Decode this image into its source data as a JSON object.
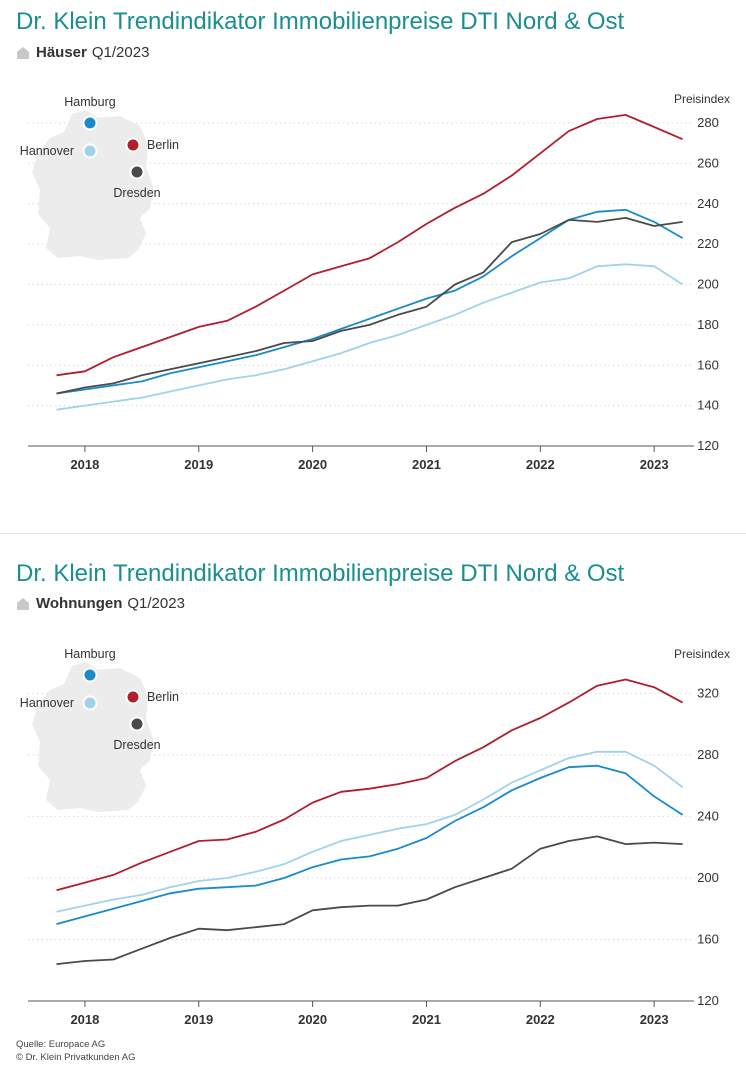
{
  "charts": [
    {
      "title": "Dr. Klein Trendindikator Immobilienpreise DTI Nord & Ost",
      "subtitle_bold": "Häuser",
      "subtitle_rest": "Q1/2023"
    },
    {
      "title": "Dr. Klein Trendindikator Immobilienpreise DTI Nord & Ost",
      "subtitle_bold": "Wohnungen",
      "subtitle_rest": "Q1/2023"
    }
  ],
  "source_lines": [
    "Quelle: Europace AG",
    "© Dr. Klein Privatkunden AG"
  ],
  "colors": {
    "title": "#1a8f8f",
    "hamburg": "#1a8acb",
    "hannover": "#9fd3ea",
    "berlin": "#b01f2e",
    "dresden": "#4a4a4a",
    "map": "#ececec"
  },
  "chart_data": [
    {
      "type": "line",
      "title": "Dr. Klein Trendindikator Immobilienpreise DTI Nord & Ost",
      "subtitle": "Häuser Q1/2023",
      "ylabel": "Preisindex",
      "xlim": [
        2017.5,
        2023.35
      ],
      "ylim": [
        120,
        280
      ],
      "yticks": [
        120,
        140,
        160,
        180,
        200,
        220,
        240,
        260,
        280
      ],
      "xticks": [
        2018,
        2019,
        2020,
        2021,
        2022,
        2023
      ],
      "xtick_labels": [
        "2018",
        "2019",
        "2020",
        "2021",
        "2022",
        "2023"
      ],
      "grid": "horizontal-dotted",
      "legend": "map-inset-top-left",
      "x": [
        2017.75,
        2018.0,
        2018.25,
        2018.5,
        2018.75,
        2019.0,
        2019.25,
        2019.5,
        2019.75,
        2020.0,
        2020.25,
        2020.5,
        2020.75,
        2021.0,
        2021.25,
        2021.5,
        2021.75,
        2022.0,
        2022.25,
        2022.5,
        2022.75,
        2023.0,
        2023.25
      ],
      "series": [
        {
          "name": "Berlin",
          "color": "#b01f2e",
          "values": [
            155,
            157,
            164,
            169,
            174,
            179,
            182,
            189,
            197,
            205,
            209,
            213,
            221,
            230,
            238,
            245,
            254,
            265,
            276,
            282,
            284,
            278,
            272
          ]
        },
        {
          "name": "Hamburg",
          "color": "#1a8acb",
          "values": [
            146,
            148,
            150,
            152,
            156,
            159,
            162,
            165,
            169,
            173,
            178,
            183,
            188,
            193,
            197,
            204,
            214,
            223,
            232,
            236,
            237,
            231,
            223
          ]
        },
        {
          "name": "Hannover",
          "color": "#9fd3ea",
          "values": [
            138,
            140,
            142,
            144,
            147,
            150,
            153,
            155,
            158,
            162,
            166,
            171,
            175,
            180,
            185,
            191,
            196,
            201,
            203,
            209,
            210,
            209,
            200
          ]
        },
        {
          "name": "Dresden",
          "color": "#4a4a4a",
          "values": [
            146,
            149,
            151,
            155,
            158,
            161,
            164,
            167,
            171,
            172,
            177,
            180,
            185,
            189,
            200,
            206,
            221,
            225,
            232,
            231,
            233,
            229,
            231
          ]
        }
      ],
      "map_labels": [
        {
          "name": "Hamburg",
          "color": "#1a8acb"
        },
        {
          "name": "Hannover",
          "color": "#9fd3ea"
        },
        {
          "name": "Berlin",
          "color": "#b01f2e"
        },
        {
          "name": "Dresden",
          "color": "#4a4a4a"
        }
      ]
    },
    {
      "type": "line",
      "title": "Dr. Klein Trendindikator Immobilienpreise DTI Nord & Ost",
      "subtitle": "Wohnungen Q1/2023",
      "ylabel": "Preisindex",
      "xlim": [
        2017.5,
        2023.35
      ],
      "ylim": [
        120,
        330
      ],
      "yticks": [
        120,
        160,
        200,
        240,
        280,
        320
      ],
      "xticks": [
        2018,
        2019,
        2020,
        2021,
        2022,
        2023
      ],
      "xtick_labels": [
        "2018",
        "2019",
        "2020",
        "2021",
        "2022",
        "2023"
      ],
      "grid": "horizontal-dotted",
      "legend": "map-inset-top-left",
      "x": [
        2017.75,
        2018.0,
        2018.25,
        2018.5,
        2018.75,
        2019.0,
        2019.25,
        2019.5,
        2019.75,
        2020.0,
        2020.25,
        2020.5,
        2020.75,
        2021.0,
        2021.25,
        2021.5,
        2021.75,
        2022.0,
        2022.25,
        2022.5,
        2022.75,
        2023.0,
        2023.25
      ],
      "series": [
        {
          "name": "Berlin",
          "color": "#b01f2e",
          "values": [
            192,
            197,
            202,
            210,
            217,
            224,
            225,
            230,
            238,
            249,
            256,
            258,
            261,
            265,
            276,
            285,
            296,
            304,
            314,
            325,
            329,
            324,
            314
          ]
        },
        {
          "name": "Hamburg",
          "color": "#1a8acb",
          "values": [
            170,
            175,
            180,
            185,
            190,
            193,
            194,
            195,
            200,
            207,
            212,
            214,
            219,
            226,
            237,
            246,
            257,
            265,
            272,
            273,
            268,
            253,
            241
          ]
        },
        {
          "name": "Hannover",
          "color": "#9fd3ea",
          "values": [
            178,
            182,
            186,
            189,
            194,
            198,
            200,
            204,
            209,
            217,
            224,
            228,
            232,
            235,
            241,
            251,
            262,
            270,
            278,
            282,
            282,
            273,
            259
          ]
        },
        {
          "name": "Dresden",
          "color": "#4a4a4a",
          "values": [
            144,
            146,
            147,
            154,
            161,
            167,
            166,
            168,
            170,
            179,
            181,
            182,
            182,
            186,
            194,
            200,
            206,
            219,
            224,
            227,
            222,
            223,
            222
          ]
        }
      ],
      "map_labels": [
        {
          "name": "Hamburg",
          "color": "#1a8acb"
        },
        {
          "name": "Hannover",
          "color": "#9fd3ea"
        },
        {
          "name": "Berlin",
          "color": "#b01f2e"
        },
        {
          "name": "Dresden",
          "color": "#4a4a4a"
        }
      ]
    }
  ]
}
